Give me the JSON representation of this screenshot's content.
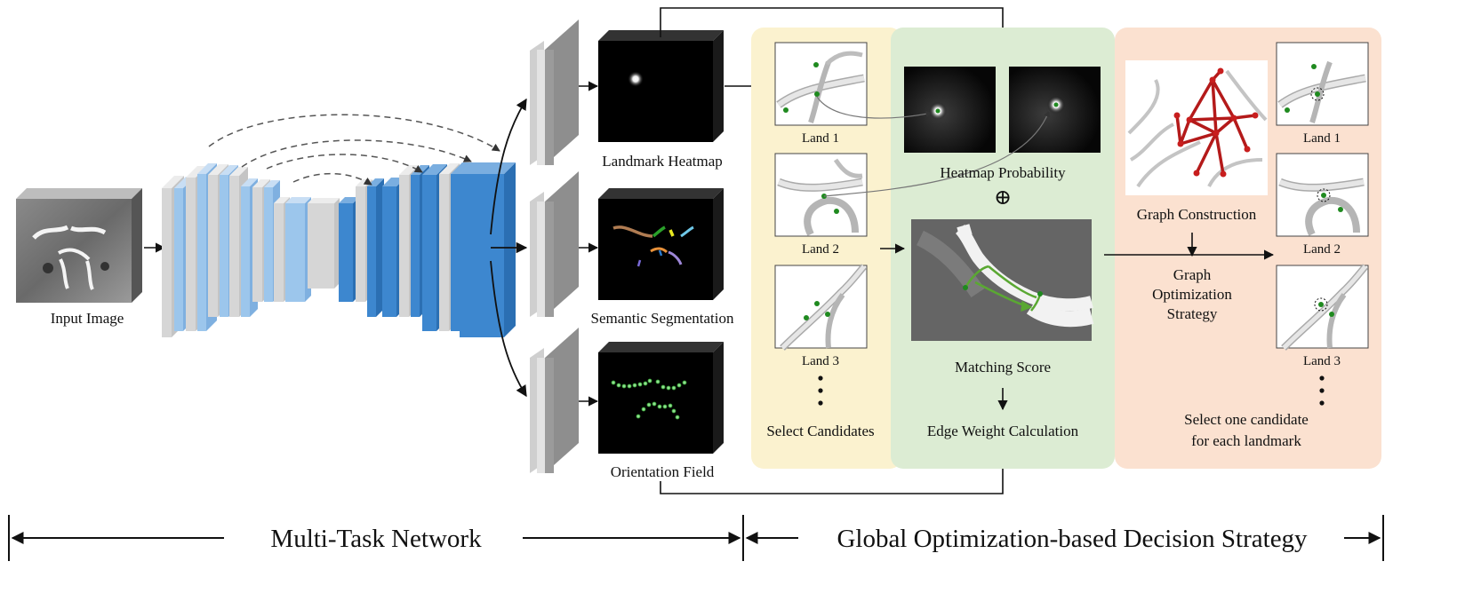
{
  "colors": {
    "light_blue": "#9cc6ec",
    "dark_blue": "#3d87cf",
    "gray_layer": "#d6d6d6",
    "candidate_panel": "#fbf2cf",
    "edge_panel": "#dcecd3",
    "graph_panel": "#fbe1d0",
    "landmark_green": "#1f8a1f",
    "graph_red": "#b41a1a"
  },
  "labels": {
    "input_image": "Input Image",
    "landmark_heatmap": "Landmark Heatmap",
    "semantic_segmentation": "Semantic Segmentation",
    "orientation_field": "Orientation Field",
    "land1": "Land 1",
    "land2": "Land 2",
    "land3": "Land 3",
    "select_candidates": "Select Candidates",
    "heatmap_probability": "Heatmap Probability",
    "oplus": "⊕",
    "matching_score": "Matching Score",
    "edge_weight": "Edge Weight Calculation",
    "graph_construction": "Graph Construction",
    "graph_opt_1": "Graph",
    "graph_opt_2": "Optimization",
    "graph_opt_3": "Strategy",
    "select_one_1": "Select one candidate",
    "select_one_2": "for each landmark",
    "bottom_left": "Multi-Task Network",
    "bottom_right": "Global Optimization-based Decision Strategy"
  }
}
